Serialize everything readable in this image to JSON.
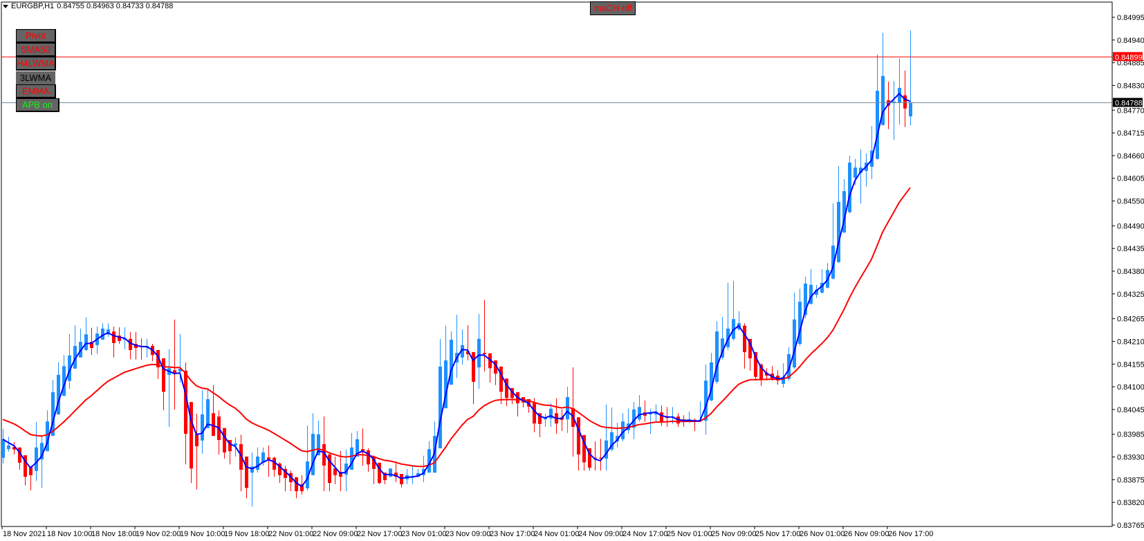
{
  "header": {
    "symbol_timeframe": "EURGBP,H1",
    "ohlc": "0.84755 0.84963 0.84733 0.84788",
    "menu_icon": "triangle-down-icon"
  },
  "buttons": [
    {
      "label": "Pivot",
      "color": "#ff0000"
    },
    {
      "label": "SMA50",
      "color": "#ff0000"
    },
    {
      "label": "H4LWMA",
      "color": "#ff0000"
    },
    {
      "label": "3LWMA",
      "color": "#000000"
    },
    {
      "label": "EMMA",
      "color": "#ff0000"
    },
    {
      "label": "APB on",
      "color": "#00ff00"
    }
  ],
  "mach_button": {
    "label": "maCH off",
    "color": "#ff0000"
  },
  "chart_data": {
    "type": "candlestick",
    "symbol": "EURGBP",
    "timeframe": "H1",
    "ylim": [
      0.83765,
      0.84995
    ],
    "grid": false,
    "colors": {
      "bull": "#1e90ff",
      "bear": "#ff0000",
      "fast_ma": "#0000ff",
      "slow_ma": "#ff0000",
      "level_line": "#ff0000",
      "bid_line": "#778899"
    },
    "y_ticks": [
      "0.84995",
      "0.84940",
      "0.84885",
      "0.84830",
      "0.84770",
      "0.84715",
      "0.84660",
      "0.84605",
      "0.84550",
      "0.84490",
      "0.84435",
      "0.84380",
      "0.84325",
      "0.84265",
      "0.84210",
      "0.84155",
      "0.84100",
      "0.84045",
      "0.83985",
      "0.83930",
      "0.83875",
      "0.83820",
      "0.83765"
    ],
    "x_ticks": [
      "18 Nov 2021",
      "18 Nov 10:00",
      "18 Nov 18:00",
      "19 Nov 02:00",
      "19 Nov 10:00",
      "19 Nov 18:00",
      "22 Nov 01:00",
      "22 Nov 09:00",
      "22 Nov 17:00",
      "23 Nov 01:00",
      "23 Nov 09:00",
      "23 Nov 17:00",
      "24 Nov 01:00",
      "24 Nov 09:00",
      "24 Nov 17:00",
      "25 Nov 01:00",
      "25 Nov 09:00",
      "25 Nov 17:00",
      "26 Nov 01:00",
      "26 Nov 09:00",
      "26 Nov 17:00"
    ],
    "level_line": {
      "value": 0.84899,
      "label": "0.84899"
    },
    "bid_line": {
      "value": 0.84788,
      "label": "0.84788"
    },
    "candle_fields": [
      "open",
      "high",
      "low",
      "close"
    ],
    "candles": [
      [
        0.83928,
        0.83998,
        0.83914,
        0.83973
      ],
      [
        0.83949,
        0.83979,
        0.83943,
        0.83958
      ],
      [
        0.83954,
        0.83966,
        0.83936,
        0.83948
      ],
      [
        0.83953,
        0.83953,
        0.83899,
        0.83916
      ],
      [
        0.83934,
        0.83934,
        0.83861,
        0.83882
      ],
      [
        0.83907,
        0.83907,
        0.83849,
        0.83886
      ],
      [
        0.83896,
        0.84015,
        0.83872,
        0.83953
      ],
      [
        0.83924,
        0.83983,
        0.83855,
        0.83964
      ],
      [
        0.83944,
        0.84043,
        0.83944,
        0.84016
      ],
      [
        0.83981,
        0.84117,
        0.83981,
        0.84087
      ],
      [
        0.84033,
        0.84159,
        0.84033,
        0.84129
      ],
      [
        0.84078,
        0.84177,
        0.84078,
        0.8415
      ],
      [
        0.84114,
        0.84228,
        0.84095,
        0.84176
      ],
      [
        0.84144,
        0.84249,
        0.84144,
        0.84199
      ],
      [
        0.84171,
        0.84241,
        0.84171,
        0.84209
      ],
      [
        0.84189,
        0.84268,
        0.84187,
        0.84227
      ],
      [
        0.84209,
        0.84243,
        0.84177,
        0.84194
      ],
      [
        0.84201,
        0.84246,
        0.84179,
        0.84229
      ],
      [
        0.84214,
        0.84254,
        0.84214,
        0.84241
      ],
      [
        0.84227,
        0.84254,
        0.84221,
        0.84239
      ],
      [
        0.84234,
        0.84246,
        0.84171,
        0.84206
      ],
      [
        0.84224,
        0.84244,
        0.84204,
        0.84211
      ],
      [
        0.84214,
        0.84244,
        0.84191,
        0.84217
      ],
      [
        0.84216,
        0.84233,
        0.84167,
        0.84189
      ],
      [
        0.84204,
        0.84233,
        0.84166,
        0.84194
      ],
      [
        0.84199,
        0.84217,
        0.84166,
        0.84196
      ],
      [
        0.84196,
        0.84216,
        0.84171,
        0.84199
      ],
      [
        0.84199,
        0.84204,
        0.84162,
        0.84177
      ],
      [
        0.84189,
        0.84189,
        0.84119,
        0.84147
      ],
      [
        0.84169,
        0.84169,
        0.84043,
        0.84088
      ],
      [
        0.84129,
        0.84191,
        0.84003,
        0.84145
      ],
      [
        0.8414,
        0.84263,
        0.84045,
        0.84132
      ],
      [
        0.84137,
        0.84228,
        0.8411,
        0.84144
      ],
      [
        0.84139,
        0.84159,
        0.83912,
        0.83986
      ],
      [
        0.84063,
        0.84063,
        0.83867,
        0.83902
      ],
      [
        0.83985,
        0.84035,
        0.83851,
        0.83956
      ],
      [
        0.8397,
        0.84092,
        0.83938,
        0.84033
      ],
      [
        0.84,
        0.84095,
        0.84,
        0.8407
      ],
      [
        0.84036,
        0.84104,
        0.83981,
        0.83981
      ],
      [
        0.84028,
        0.84043,
        0.83936,
        0.83971
      ],
      [
        0.84,
        0.84,
        0.83926,
        0.83941
      ],
      [
        0.83971,
        0.83971,
        0.83912,
        0.83944
      ],
      [
        0.83958,
        0.83978,
        0.83931,
        0.83963
      ],
      [
        0.83961,
        0.83984,
        0.83847,
        0.83899
      ],
      [
        0.83931,
        0.83931,
        0.8383,
        0.83855
      ],
      [
        0.83892,
        0.83941,
        0.8381,
        0.83907
      ],
      [
        0.83899,
        0.83953,
        0.83892,
        0.83931
      ],
      [
        0.83916,
        0.83953,
        0.83909,
        0.83941
      ],
      [
        0.83929,
        0.83958,
        0.83882,
        0.83924
      ],
      [
        0.83928,
        0.83931,
        0.83882,
        0.83899
      ],
      [
        0.83914,
        0.83917,
        0.83867,
        0.83886
      ],
      [
        0.83901,
        0.83909,
        0.83847,
        0.83879
      ],
      [
        0.83891,
        0.83897,
        0.83847,
        0.83869
      ],
      [
        0.83881,
        0.83881,
        0.8383,
        0.83847
      ],
      [
        0.83864,
        0.83886,
        0.83839,
        0.83847
      ],
      [
        0.83854,
        0.84006,
        0.83849,
        0.83919
      ],
      [
        0.83886,
        0.84036,
        0.83886,
        0.83986
      ],
      [
        0.83934,
        0.84018,
        0.83934,
        0.83985
      ],
      [
        0.83961,
        0.84028,
        0.83847,
        0.83909
      ],
      [
        0.83936,
        0.83939,
        0.83847,
        0.83867
      ],
      [
        0.83902,
        0.83931,
        0.83864,
        0.83886
      ],
      [
        0.83894,
        0.83944,
        0.83847,
        0.83882
      ],
      [
        0.83887,
        0.83948,
        0.83847,
        0.83914
      ],
      [
        0.83899,
        0.83988,
        0.83899,
        0.83953
      ],
      [
        0.83931,
        0.83993,
        0.83931,
        0.83973
      ],
      [
        0.83949,
        0.83999,
        0.83909,
        0.83941
      ],
      [
        0.83946,
        0.83951,
        0.83894,
        0.83912
      ],
      [
        0.83931,
        0.83931,
        0.83864,
        0.83901
      ],
      [
        0.83916,
        0.83916,
        0.83864,
        0.83867
      ],
      [
        0.83892,
        0.83892,
        0.83864,
        0.83874
      ],
      [
        0.83882,
        0.83902,
        0.83881,
        0.83902
      ],
      [
        0.83892,
        0.83916,
        0.83869,
        0.83882
      ],
      [
        0.83889,
        0.83889,
        0.83856,
        0.83864
      ],
      [
        0.83876,
        0.83901,
        0.83864,
        0.83886
      ],
      [
        0.83882,
        0.83909,
        0.83864,
        0.83884
      ],
      [
        0.83882,
        0.83901,
        0.83881,
        0.83891
      ],
      [
        0.83886,
        0.83933,
        0.83869,
        0.83901
      ],
      [
        0.83892,
        0.83968,
        0.83892,
        0.83949
      ],
      [
        0.83892,
        0.84016,
        0.83892,
        0.83981
      ],
      [
        0.83951,
        0.84216,
        0.83951,
        0.84149
      ],
      [
        0.84048,
        0.84248,
        0.84048,
        0.84164
      ],
      [
        0.84105,
        0.84234,
        0.84105,
        0.84214
      ],
      [
        0.84159,
        0.84274,
        0.84122,
        0.84182
      ],
      [
        0.84171,
        0.84239,
        0.84154,
        0.84201
      ],
      [
        0.84186,
        0.84249,
        0.84164,
        0.84179
      ],
      [
        0.84184,
        0.84184,
        0.84058,
        0.84112
      ],
      [
        0.84147,
        0.84276,
        0.84095,
        0.84216
      ],
      [
        0.84182,
        0.8431,
        0.84137,
        0.84179
      ],
      [
        0.84181,
        0.84181,
        0.8411,
        0.84145
      ],
      [
        0.84164,
        0.84164,
        0.84104,
        0.84132
      ],
      [
        0.84149,
        0.84149,
        0.84058,
        0.84088
      ],
      [
        0.8412,
        0.8412,
        0.84053,
        0.84073
      ],
      [
        0.84097,
        0.84097,
        0.84058,
        0.84073
      ],
      [
        0.84087,
        0.84087,
        0.84028,
        0.8406
      ],
      [
        0.84075,
        0.84075,
        0.8405,
        0.84062
      ],
      [
        0.8407,
        0.8407,
        0.84037,
        0.84052
      ],
      [
        0.84062,
        0.84073,
        0.8399,
        0.84011
      ],
      [
        0.84036,
        0.84036,
        0.83978,
        0.8401
      ],
      [
        0.84021,
        0.84035,
        0.84003,
        0.84026
      ],
      [
        0.84023,
        0.8406,
        0.84003,
        0.84047
      ],
      [
        0.84036,
        0.84072,
        0.83986,
        0.84011
      ],
      [
        0.84026,
        0.84045,
        0.83993,
        0.8402
      ],
      [
        0.84021,
        0.841,
        0.83988,
        0.84075
      ],
      [
        0.84048,
        0.84147,
        0.83931,
        0.84003
      ],
      [
        0.84026,
        0.84026,
        0.83897,
        0.83936
      ],
      [
        0.83983,
        0.83983,
        0.83897,
        0.83917
      ],
      [
        0.83951,
        0.83951,
        0.83897,
        0.83904
      ],
      [
        0.83928,
        0.83968,
        0.83897,
        0.83926
      ],
      [
        0.83928,
        0.83974,
        0.83897,
        0.83926
      ],
      [
        0.83926,
        0.84057,
        0.83897,
        0.8397
      ],
      [
        0.83948,
        0.8405,
        0.83944,
        0.8399
      ],
      [
        0.83968,
        0.84013,
        0.83953,
        0.83981
      ],
      [
        0.83973,
        0.84036,
        0.83968,
        0.84016
      ],
      [
        0.83995,
        0.84047,
        0.83986,
        0.84011
      ],
      [
        0.84001,
        0.84063,
        0.83973,
        0.84045
      ],
      [
        0.84021,
        0.8408,
        0.84016,
        0.84051
      ],
      [
        0.84038,
        0.84067,
        0.84015,
        0.8403
      ],
      [
        0.84033,
        0.84047,
        0.83986,
        0.84036
      ],
      [
        0.84033,
        0.84057,
        0.84015,
        0.8404
      ],
      [
        0.84038,
        0.84055,
        0.84005,
        0.84015
      ],
      [
        0.84026,
        0.84051,
        0.84003,
        0.84025
      ],
      [
        0.84026,
        0.84051,
        0.8401,
        0.84028
      ],
      [
        0.84028,
        0.84036,
        0.84003,
        0.84011
      ],
      [
        0.84021,
        0.84031,
        0.84003,
        0.84016
      ],
      [
        0.84018,
        0.8404,
        0.84013,
        0.84021
      ],
      [
        0.8402,
        0.84023,
        0.83993,
        0.84015
      ],
      [
        0.84016,
        0.84065,
        0.84015,
        0.8402
      ],
      [
        0.84018,
        0.84154,
        0.83984,
        0.84115
      ],
      [
        0.84067,
        0.84182,
        0.84065,
        0.84159
      ],
      [
        0.84112,
        0.84259,
        0.84107,
        0.84234
      ],
      [
        0.84171,
        0.84269,
        0.84166,
        0.84217
      ],
      [
        0.84196,
        0.84352,
        0.84189,
        0.84241
      ],
      [
        0.84216,
        0.84357,
        0.84212,
        0.84264
      ],
      [
        0.84239,
        0.84283,
        0.84236,
        0.84254
      ],
      [
        0.84248,
        0.84254,
        0.84144,
        0.84184
      ],
      [
        0.84216,
        0.84216,
        0.84139,
        0.84169
      ],
      [
        0.84184,
        0.84184,
        0.84115,
        0.84124
      ],
      [
        0.84154,
        0.84157,
        0.84102,
        0.84117
      ],
      [
        0.84134,
        0.84145,
        0.84115,
        0.84127
      ],
      [
        0.84132,
        0.8415,
        0.84115,
        0.8412
      ],
      [
        0.84127,
        0.8414,
        0.84105,
        0.84115
      ],
      [
        0.84107,
        0.84157,
        0.84098,
        0.84124
      ],
      [
        0.84119,
        0.84196,
        0.84115,
        0.84179
      ],
      [
        0.84147,
        0.84328,
        0.84144,
        0.84263
      ],
      [
        0.84204,
        0.84338,
        0.84199,
        0.84306
      ],
      [
        0.84274,
        0.84367,
        0.84266,
        0.8435
      ],
      [
        0.84301,
        0.84385,
        0.84299,
        0.84347
      ],
      [
        0.84323,
        0.84347,
        0.84315,
        0.84335
      ],
      [
        0.84328,
        0.84385,
        0.84326,
        0.84352
      ],
      [
        0.8434,
        0.844,
        0.84338,
        0.84383
      ],
      [
        0.84362,
        0.84544,
        0.8436,
        0.84442
      ],
      [
        0.84402,
        0.84635,
        0.844,
        0.84548
      ],
      [
        0.84474,
        0.84603,
        0.84472,
        0.84574
      ],
      [
        0.84523,
        0.8466,
        0.8452,
        0.84643
      ],
      [
        0.84606,
        0.84652,
        0.84588,
        0.84631
      ],
      [
        0.84618,
        0.84675,
        0.84544,
        0.84631
      ],
      [
        0.84623,
        0.84665,
        0.84585,
        0.84643
      ],
      [
        0.84633,
        0.84732,
        0.84603,
        0.84672
      ],
      [
        0.84652,
        0.84905,
        0.8465,
        0.84817
      ],
      [
        0.84734,
        0.84957,
        0.84733,
        0.84853
      ],
      [
        0.84794,
        0.84839,
        0.84724,
        0.84781
      ],
      [
        0.84787,
        0.84841,
        0.84698,
        0.84791
      ],
      [
        0.84789,
        0.84895,
        0.84735,
        0.84824
      ],
      [
        0.84806,
        0.84866,
        0.84729,
        0.84774
      ],
      [
        0.84755,
        0.84963,
        0.84733,
        0.84788
      ]
    ]
  }
}
